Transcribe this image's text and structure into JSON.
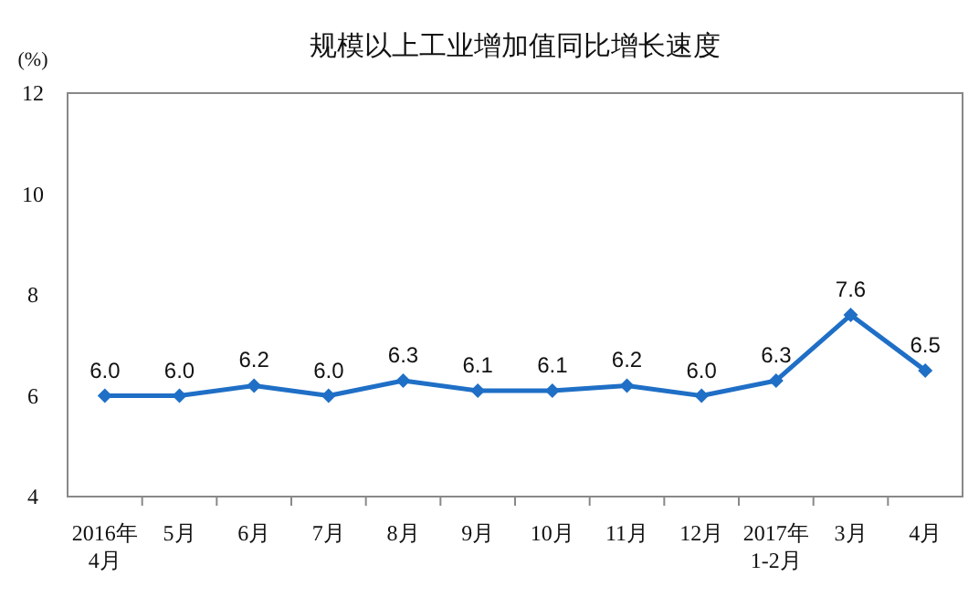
{
  "chart_data": {
    "type": "line",
    "title": "规模以上工业增加值同比增长速度",
    "ylabel": "(%)",
    "categories": [
      "2016年\n4月",
      "5月",
      "6月",
      "7月",
      "8月",
      "9月",
      "10月",
      "11月",
      "12月",
      "2017年\n1-2月",
      "3月",
      "4月"
    ],
    "series": [
      {
        "color": "#1f6fc6",
        "values": [
          6.0,
          6.0,
          6.2,
          6.0,
          6.3,
          6.1,
          6.1,
          6.2,
          6.0,
          6.3,
          7.6,
          6.5
        ],
        "value_labels": [
          "6.0",
          "6.0",
          "6.2",
          "6.0",
          "6.3",
          "6.1",
          "6.1",
          "6.2",
          "6.0",
          "6.3",
          "7.6",
          "6.5"
        ]
      }
    ],
    "ylim": [
      4,
      12
    ],
    "yticks": [
      4,
      6,
      8,
      10,
      12
    ],
    "grid": false,
    "marker": "diamond",
    "line_style": "solid"
  }
}
